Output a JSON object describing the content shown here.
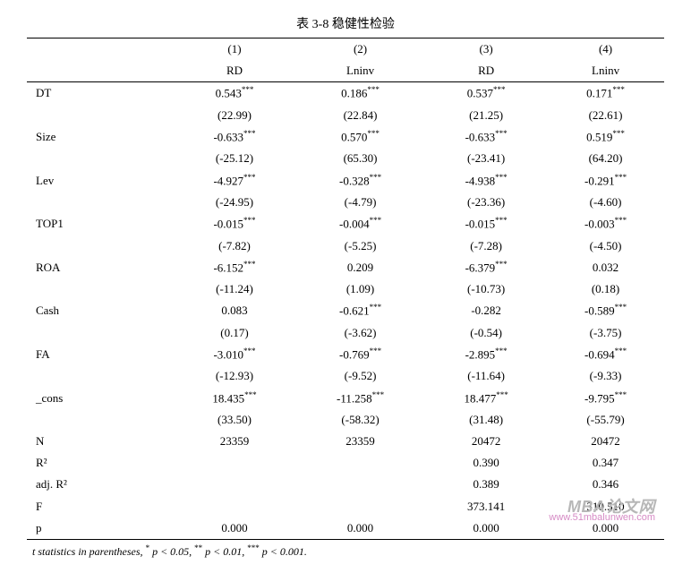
{
  "title": "表 3-8  稳健性检验",
  "colnums": {
    "c1": "(1)",
    "c2": "(2)",
    "c3": "(3)",
    "c4": "(4)"
  },
  "depvars": {
    "c1": "RD",
    "c2": "Lninv",
    "c3": "RD",
    "c4": "Lninv"
  },
  "rows": [
    {
      "label": "DT",
      "est": {
        "c1": "0.543",
        "c2": "0.186",
        "c3": "0.537",
        "c4": "0.171"
      },
      "sig": {
        "c1": "***",
        "c2": "***",
        "c3": "***",
        "c4": "***"
      },
      "tstat": {
        "c1": "(22.99)",
        "c2": "(22.84)",
        "c3": "(21.25)",
        "c4": "(22.61)"
      }
    },
    {
      "label": "Size",
      "est": {
        "c1": "-0.633",
        "c2": "0.570",
        "c3": "-0.633",
        "c4": "0.519"
      },
      "sig": {
        "c1": "***",
        "c2": "***",
        "c3": "***",
        "c4": "***"
      },
      "tstat": {
        "c1": "(-25.12)",
        "c2": "(65.30)",
        "c3": "(-23.41)",
        "c4": "(64.20)"
      }
    },
    {
      "label": "Lev",
      "est": {
        "c1": "-4.927",
        "c2": "-0.328",
        "c3": "-4.938",
        "c4": "-0.291"
      },
      "sig": {
        "c1": "***",
        "c2": "***",
        "c3": "***",
        "c4": "***"
      },
      "tstat": {
        "c1": "(-24.95)",
        "c2": "(-4.79)",
        "c3": "(-23.36)",
        "c4": "(-4.60)"
      }
    },
    {
      "label": "TOP1",
      "est": {
        "c1": "-0.015",
        "c2": "-0.004",
        "c3": "-0.015",
        "c4": "-0.003"
      },
      "sig": {
        "c1": "***",
        "c2": "***",
        "c3": "***",
        "c4": "***"
      },
      "tstat": {
        "c1": "(-7.82)",
        "c2": "(-5.25)",
        "c3": "(-7.28)",
        "c4": "(-4.50)"
      }
    },
    {
      "label": "ROA",
      "est": {
        "c1": "-6.152",
        "c2": "0.209",
        "c3": "-6.379",
        "c4": "0.032"
      },
      "sig": {
        "c1": "***",
        "c2": "",
        "c3": "***",
        "c4": ""
      },
      "tstat": {
        "c1": "(-11.24)",
        "c2": "(1.09)",
        "c3": "(-10.73)",
        "c4": "(0.18)"
      }
    },
    {
      "label": "Cash",
      "est": {
        "c1": "0.083",
        "c2": "-0.621",
        "c3": "-0.282",
        "c4": "-0.589"
      },
      "sig": {
        "c1": "",
        "c2": "***",
        "c3": "",
        "c4": "***"
      },
      "tstat": {
        "c1": "(0.17)",
        "c2": "(-3.62)",
        "c3": "(-0.54)",
        "c4": "(-3.75)"
      }
    },
    {
      "label": "FA",
      "est": {
        "c1": "-3.010",
        "c2": "-0.769",
        "c3": "-2.895",
        "c4": "-0.694"
      },
      "sig": {
        "c1": "***",
        "c2": "***",
        "c3": "***",
        "c4": "***"
      },
      "tstat": {
        "c1": "(-12.93)",
        "c2": "(-9.52)",
        "c3": "(-11.64)",
        "c4": "(-9.33)"
      }
    },
    {
      "label": "_cons",
      "est": {
        "c1": "18.435",
        "c2": "-11.258",
        "c3": "18.477",
        "c4": "-9.795"
      },
      "sig": {
        "c1": "***",
        "c2": "***",
        "c3": "***",
        "c4": "***"
      },
      "tstat": {
        "c1": "(33.50)",
        "c2": "(-58.32)",
        "c3": "(31.48)",
        "c4": "(-55.79)"
      }
    }
  ],
  "stats": [
    {
      "label": "N",
      "c1": "23359",
      "c2": "23359",
      "c3": "20472",
      "c4": "20472"
    },
    {
      "label": "R²",
      "c1": "",
      "c2": "",
      "c3": "0.390",
      "c4": "0.347"
    },
    {
      "label": "adj. R²",
      "c1": "",
      "c2": "",
      "c3": "0.389",
      "c4": "0.346"
    },
    {
      "label": "F",
      "c1": "",
      "c2": "",
      "c3": "373.141",
      "c4": "310.510"
    },
    {
      "label": "p",
      "c1": "0.000",
      "c2": "0.000",
      "c3": "0.000",
      "c4": "0.000"
    }
  ],
  "footnote": {
    "pre": "t statistics in parentheses,  ",
    "s1": "*",
    "p1": " p < 0.05, ",
    "s2": "**",
    "p2": " p < 0.01, ",
    "s3": "***",
    "p3": " p < 0.001."
  },
  "watermark": {
    "line1": "MBA论文网",
    "line2": "www.51mbalunwen.com"
  }
}
